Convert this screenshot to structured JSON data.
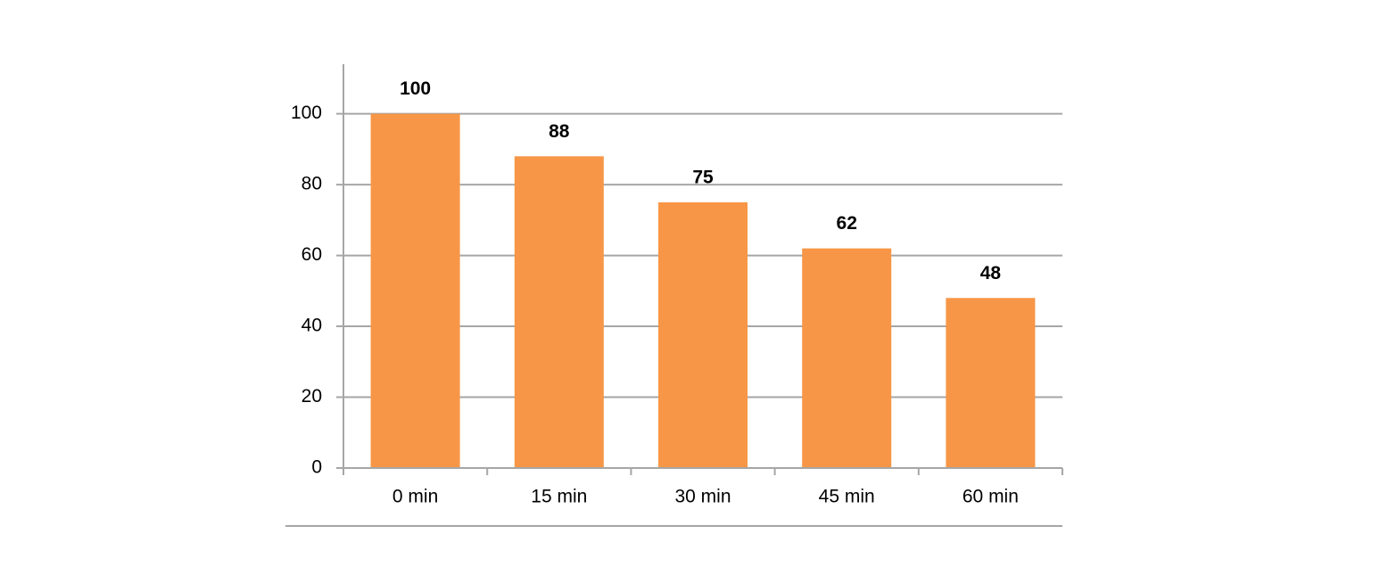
{
  "chart_data": {
    "type": "bar",
    "categories": [
      "0 min",
      "15 min",
      "30 min",
      "45 min",
      "60 min"
    ],
    "values": [
      100,
      88,
      75,
      62,
      48
    ],
    "color": "#f79646",
    "ylim": [
      0,
      114
    ],
    "yticks": [
      0,
      20,
      40,
      60,
      80,
      100
    ],
    "grid": true
  }
}
